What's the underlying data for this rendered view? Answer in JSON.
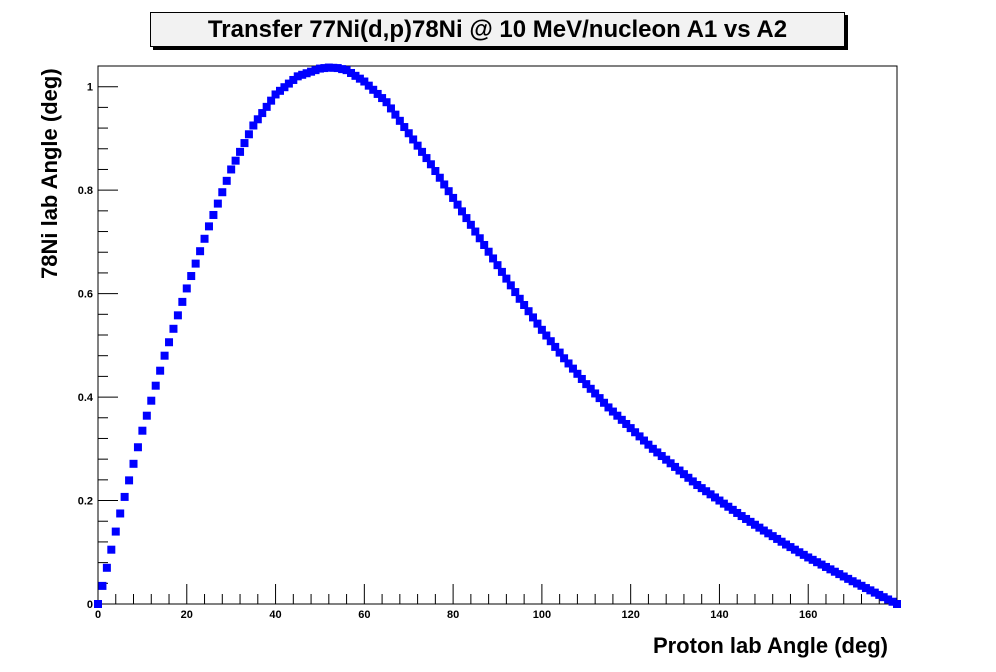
{
  "chart_data": {
    "type": "scatter",
    "title": "Transfer 77Ni(d,p)78Ni @ 10 MeV/nucleon A1 vs A2",
    "xlabel": "Proton lab Angle (deg)",
    "ylabel": "78Ni lab Angle (deg)",
    "xlim": [
      0,
      180
    ],
    "ylim": [
      0,
      1.04
    ],
    "x_ticks": [
      "0",
      "20",
      "40",
      "60",
      "80",
      "100",
      "120",
      "140",
      "160"
    ],
    "y_ticks": [
      "0",
      "0.2",
      "0.4",
      "0.6",
      "0.8",
      "1"
    ],
    "grid": false,
    "marker_color": "#0000ff",
    "series": [
      {
        "x": [
          0,
          5,
          10,
          15,
          20,
          25,
          30,
          35,
          40,
          45,
          50,
          52,
          54,
          56,
          60,
          65,
          70,
          75,
          80,
          85,
          90,
          95,
          100,
          105,
          110,
          115,
          120,
          125,
          130,
          135,
          140,
          145,
          150,
          155,
          160,
          165,
          170,
          175,
          180
        ],
        "y": [
          0,
          0.175,
          0.335,
          0.48,
          0.61,
          0.73,
          0.84,
          0.925,
          0.985,
          1.02,
          1.035,
          1.037,
          1.036,
          1.032,
          1.01,
          0.97,
          0.91,
          0.85,
          0.785,
          0.72,
          0.655,
          0.59,
          0.53,
          0.475,
          0.425,
          0.38,
          0.34,
          0.3,
          0.265,
          0.23,
          0.2,
          0.17,
          0.142,
          0.115,
          0.09,
          0.067,
          0.044,
          0.022,
          0
        ]
      }
    ]
  }
}
